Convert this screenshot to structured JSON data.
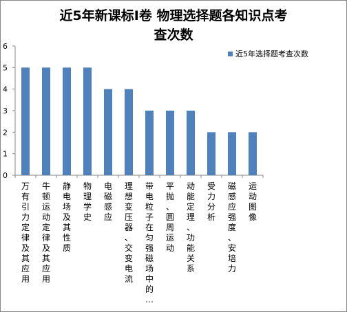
{
  "chart_data": {
    "type": "bar",
    "title_lines": [
      "近5年新课标Ⅰ卷 物理选择题各知识点考",
      "查次数"
    ],
    "categories": [
      "万有引力定律及其应用",
      "牛顿运动定律及其应用",
      "静电场及其性质",
      "物理学史",
      "电磁感应",
      "理想变压器、交变电流",
      "带电粒子在匀强磁场中的…",
      "平抛、圆周运动",
      "动能定理、功能关系",
      "受力分析",
      "磁感应强度、安培力",
      "运动图像"
    ],
    "series": [
      {
        "name": "近5年选择题考查次数",
        "values": [
          5,
          5,
          5,
          5,
          4,
          4,
          3,
          3,
          3,
          2,
          2,
          2
        ],
        "color": "#4F81BD"
      }
    ],
    "ylim": [
      0,
      6
    ],
    "yticks": [
      0,
      1,
      2,
      3,
      4,
      5,
      6
    ],
    "grid": false,
    "legend": "right"
  }
}
